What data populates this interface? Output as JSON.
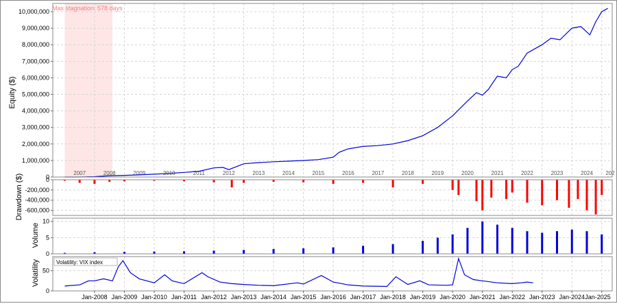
{
  "chart_data": [
    {
      "type": "line",
      "panel": "equity",
      "ylabel": "Equity ($)",
      "ylim": [
        0,
        10500000
      ],
      "yticks": [
        0,
        1000000,
        2000000,
        3000000,
        4000000,
        5000000,
        6000000,
        7000000,
        8000000,
        9000000,
        10000000
      ],
      "ytick_labels": [
        "0",
        "1,000,000",
        "2,000,000",
        "3,000,000",
        "4,000,000",
        "5,000,000",
        "6,000,000",
        "7,000,000",
        "8,000,000",
        "9,000,000",
        "10,000,000"
      ],
      "year_labels": [
        "2007",
        "2008",
        "2009",
        "2010",
        "2011",
        "2012",
        "2013",
        "2014",
        "2015",
        "2016",
        "2017",
        "2018",
        "2019",
        "2020",
        "2021",
        "2022",
        "2023",
        "2024",
        "202"
      ],
      "annotation": "Max stagnation: 578 days",
      "stagnation_period": {
        "start": 2007.0,
        "end": 2008.6
      },
      "series_color": "#0000dd",
      "x": [
        2007.0,
        2007.5,
        2008.0,
        2008.5,
        2009.0,
        2009.5,
        2010.0,
        2010.5,
        2011.0,
        2011.5,
        2012.0,
        2012.3,
        2012.5,
        2013.0,
        2013.5,
        2014.0,
        2014.5,
        2015.0,
        2015.5,
        2016.0,
        2016.2,
        2016.5,
        2017.0,
        2017.5,
        2018.0,
        2018.5,
        2019.0,
        2019.5,
        2020.0,
        2020.5,
        2020.8,
        2021.0,
        2021.2,
        2021.5,
        2021.8,
        2022.0,
        2022.2,
        2022.5,
        2023.0,
        2023.3,
        2023.6,
        2024.0,
        2024.3,
        2024.6,
        2024.8,
        2025.0,
        2025.2
      ],
      "values": [
        0,
        0,
        20000,
        80000,
        100000,
        130000,
        170000,
        220000,
        280000,
        350000,
        550000,
        580000,
        450000,
        800000,
        870000,
        920000,
        960000,
        1000000,
        1050000,
        1200000,
        1500000,
        1700000,
        1850000,
        1900000,
        2000000,
        2200000,
        2500000,
        3000000,
        3700000,
        4600000,
        5100000,
        4950000,
        5300000,
        6100000,
        6000000,
        6500000,
        6700000,
        7500000,
        8000000,
        8400000,
        8300000,
        9000000,
        9100000,
        8600000,
        9400000,
        10000000,
        10200000
      ]
    },
    {
      "type": "bar",
      "panel": "drawdown",
      "ylabel": "Drawdown ($)",
      "ylim": [
        -700000,
        0
      ],
      "yticks": [
        0,
        -200000,
        -400000,
        -600000
      ],
      "ytick_labels": [
        "0",
        "-200,000",
        "-400,000",
        "-600,000"
      ],
      "series_color": "#ff0000",
      "x": [
        2007.0,
        2007.5,
        2008.0,
        2008.5,
        2009.0,
        2010.0,
        2011.0,
        2012.0,
        2012.6,
        2013.0,
        2014.0,
        2015.0,
        2016.0,
        2017.0,
        2018.0,
        2019.0,
        2020.0,
        2020.2,
        2020.8,
        2021.0,
        2021.3,
        2021.8,
        2022.0,
        2022.5,
        2023.0,
        2023.5,
        2023.9,
        2024.2,
        2024.5,
        2024.8,
        2025.0
      ],
      "values": [
        -20000,
        -60000,
        -80000,
        -40000,
        -30000,
        -20000,
        -30000,
        -50000,
        -150000,
        -60000,
        -40000,
        -50000,
        -80000,
        -60000,
        -150000,
        -80000,
        -200000,
        -300000,
        -420000,
        -600000,
        -350000,
        -380000,
        -250000,
        -450000,
        -500000,
        -400000,
        -550000,
        -380000,
        -600000,
        -680000,
        -300000
      ]
    },
    {
      "type": "bar",
      "panel": "volume",
      "ylabel": "Volume",
      "ylim": [
        0,
        11
      ],
      "yticks": [
        0,
        5,
        10
      ],
      "ytick_labels": [
        "0",
        "5",
        "10"
      ],
      "series_color": "#0000dd",
      "x": [
        2007.0,
        2008.0,
        2009.0,
        2010.0,
        2011.0,
        2012.0,
        2013.0,
        2014.0,
        2015.0,
        2016.0,
        2017.0,
        2018.0,
        2019.0,
        2019.5,
        2020.0,
        2020.5,
        2021.0,
        2021.5,
        2022.0,
        2022.5,
        2023.0,
        2023.5,
        2024.0,
        2024.5,
        2025.0
      ],
      "values": [
        0.3,
        0.5,
        0.6,
        0.7,
        0.8,
        1.0,
        1.2,
        1.5,
        1.7,
        2.0,
        2.5,
        3.0,
        4.0,
        5.0,
        6.0,
        8.0,
        10.0,
        9.0,
        8.0,
        7.0,
        6.5,
        7.0,
        7.5,
        7.0,
        6.0
      ]
    },
    {
      "type": "line",
      "panel": "volatility",
      "ylabel": "Volatility",
      "legend": "Volatility: VIX index",
      "ylim": [
        0,
        85
      ],
      "yticks": [
        0,
        50
      ],
      "ytick_labels": [
        "0",
        "50"
      ],
      "series_color": "#0000dd",
      "x": [
        2007.0,
        2007.5,
        2007.8,
        2008.0,
        2008.3,
        2008.6,
        2008.8,
        2008.95,
        2009.2,
        2009.5,
        2010.0,
        2010.35,
        2010.6,
        2011.0,
        2011.6,
        2011.8,
        2012.2,
        2012.6,
        2013.0,
        2013.5,
        2014.0,
        2014.8,
        2015.0,
        2015.6,
        2016.0,
        2016.5,
        2017.0,
        2017.8,
        2018.1,
        2018.5,
        2018.9,
        2019.2,
        2019.8,
        2020.0,
        2020.2,
        2020.4,
        2020.7,
        2021.0,
        2021.5,
        2022.0,
        2022.3,
        2022.5,
        2022.7
      ],
      "values": [
        12,
        15,
        25,
        25,
        30,
        25,
        60,
        75,
        45,
        30,
        20,
        40,
        25,
        18,
        45,
        35,
        22,
        18,
        16,
        14,
        13,
        20,
        17,
        38,
        22,
        15,
        12,
        11,
        35,
        16,
        25,
        15,
        14,
        15,
        80,
        40,
        28,
        25,
        20,
        18,
        20,
        22,
        20
      ]
    }
  ],
  "x_axis": {
    "labels": [
      "Jan-2008",
      "Jan-2009",
      "Jan-2010",
      "Jan-2011",
      "Jan-2012",
      "Jan-2013",
      "Jan-2014",
      "Jan-2015",
      "Jan-2016",
      "Jan-2017",
      "Jan-2018",
      "Jan-2019",
      "Jan-2020",
      "Jan-2021",
      "Jan-2022",
      "Jan-2023",
      "Jan-2024",
      "Jan-2025"
    ],
    "range": [
      2006.6,
      2025.35
    ]
  }
}
